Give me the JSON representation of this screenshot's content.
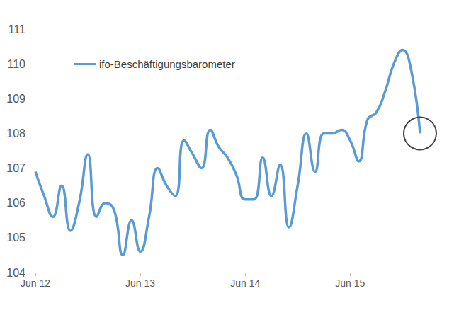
{
  "chart_data": {
    "type": "line",
    "categories": [
      "Jun 12",
      null,
      null,
      null,
      null,
      null,
      null,
      null,
      null,
      null,
      null,
      null,
      "Jun 13",
      null,
      null,
      null,
      null,
      null,
      null,
      null,
      null,
      null,
      null,
      null,
      "Jun 14",
      null,
      null,
      null,
      null,
      null,
      null,
      null,
      null,
      null,
      null,
      null,
      "Jun 15",
      null,
      null,
      null,
      null,
      null,
      null,
      null,
      null
    ],
    "series": [
      {
        "name": "ifo-Beschäftigungsbarometer",
        "color": "#5b9bd5",
        "values": [
          106.9,
          106.2,
          105.6,
          106.5,
          105.2,
          106.0,
          107.4,
          105.6,
          106.0,
          105.8,
          104.5,
          105.5,
          104.6,
          105.6,
          107.0,
          106.5,
          106.2,
          107.8,
          107.4,
          107.0,
          108.1,
          107.6,
          107.3,
          106.8,
          106.1,
          106.1,
          107.3,
          106.2,
          107.1,
          105.3,
          106.5,
          108.0,
          106.9,
          108.0,
          108.0,
          108.1,
          107.8,
          107.2,
          108.4,
          108.6,
          109.2,
          110.0,
          110.4,
          109.8,
          108.0
        ]
      }
    ],
    "ylim": [
      104,
      111
    ],
    "yticks": [
      104,
      105,
      106,
      107,
      108,
      109,
      110,
      111
    ],
    "grid": false,
    "legend": "upper left"
  }
}
